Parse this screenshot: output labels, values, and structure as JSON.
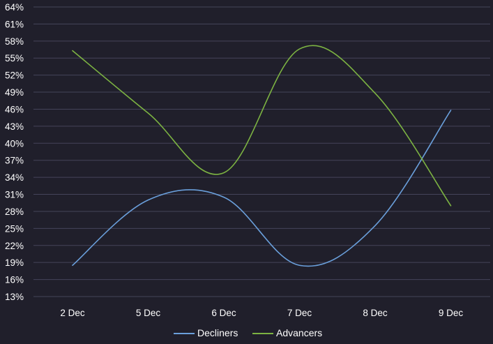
{
  "chart_data": {
    "type": "line",
    "title": "",
    "xlabel": "",
    "ylabel": "",
    "categories": [
      "2 Dec",
      "5 Dec",
      "6 Dec",
      "7 Dec",
      "8 Dec",
      "9 Dec"
    ],
    "yticks": [
      "64%",
      "61%",
      "58%",
      "55%",
      "52%",
      "49%",
      "46%",
      "43%",
      "40%",
      "37%",
      "34%",
      "31%",
      "28%",
      "25%",
      "22%",
      "19%",
      "16%",
      "13%"
    ],
    "ylim": [
      13,
      64
    ],
    "ytick_step": 3,
    "grid": true,
    "legend_position": "bottom",
    "series": [
      {
        "name": "Decliners",
        "color": "#6a9fdb",
        "values": [
          18.5,
          30.0,
          30.5,
          18.5,
          25.5,
          45.8
        ]
      },
      {
        "name": "Advancers",
        "color": "#7cb342",
        "values": [
          56.3,
          45.3,
          34.8,
          56.6,
          48.8,
          29.0
        ]
      }
    ]
  }
}
